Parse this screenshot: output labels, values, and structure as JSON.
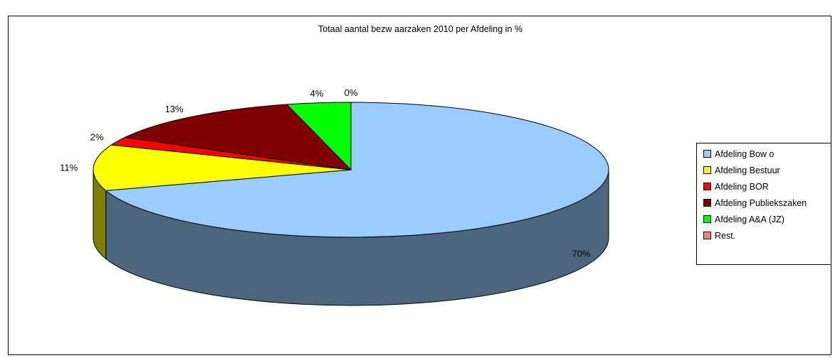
{
  "chart_data": {
    "type": "pie",
    "title": "Totaal aantal bezw aarzaken 2010 per Afdeling in %",
    "three_d": true,
    "legend_position": "right",
    "slices": [
      {
        "name": "Afdeling Bow o",
        "value": 70,
        "label": "70%",
        "color": "#99ccff",
        "side_color": "#4c6680"
      },
      {
        "name": "Afdeling Bestuur",
        "value": 11,
        "label": "11%",
        "color": "#ffff00",
        "side_color": "#808000"
      },
      {
        "name": "Afdeling BOR",
        "value": 2,
        "label": "2%",
        "color": "#ff0000",
        "side_color": "#800000"
      },
      {
        "name": "Afdeling Publiekszaken",
        "value": 13,
        "label": "13%",
        "color": "#800000",
        "side_color": "#400000"
      },
      {
        "name": "Afdeling A&A (JZ)",
        "value": 4,
        "label": "4%",
        "color": "#00ff00",
        "side_color": "#008000"
      },
      {
        "name": "Rest.",
        "value": 0,
        "label": "0%",
        "color": "#ff8080",
        "side_color": "#804040"
      }
    ]
  }
}
